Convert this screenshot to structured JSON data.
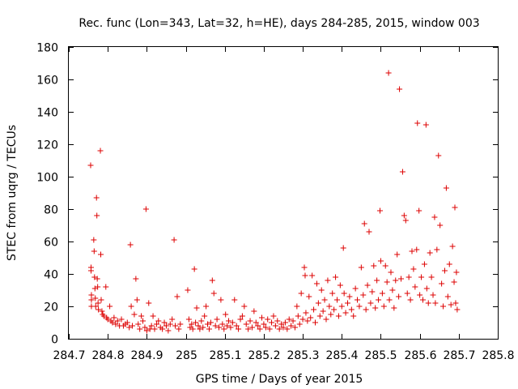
{
  "chart_data": {
    "type": "scatter",
    "title": "Rec. func (Lon=343, Lat=32, h=HE), days 284-285, 2015, window 003",
    "xlabel": "GPS time / Days of year 2015",
    "ylabel": "STEC from uqrg / TECUs",
    "xlim": [
      284.7,
      285.8
    ],
    "ylim": [
      0,
      180
    ],
    "xticks": [
      284.7,
      284.8,
      284.9,
      285,
      285.1,
      285.2,
      285.3,
      285.4,
      285.5,
      285.6,
      285.7,
      285.8
    ],
    "xtick_labels": [
      "284.7",
      "284.8",
      "284.9",
      "285",
      "285.1",
      "285.2",
      "285.3",
      "285.4",
      "285.5",
      "285.6",
      "285.7",
      "285.8"
    ],
    "yticks": [
      0,
      20,
      40,
      60,
      80,
      100,
      120,
      140,
      160,
      180
    ],
    "ytick_labels": [
      "0",
      "20",
      "40",
      "60",
      "80",
      "100",
      "120",
      "140",
      "160",
      "180"
    ],
    "grid": false,
    "marker": "+",
    "color": "#dd0000",
    "series": [
      {
        "name": "STEC",
        "points": [
          [
            284.756,
            107
          ],
          [
            284.757,
            44
          ],
          [
            284.757,
            42
          ],
          [
            284.758,
            27
          ],
          [
            284.758,
            24
          ],
          [
            284.758,
            20
          ],
          [
            284.764,
            61
          ],
          [
            284.765,
            54
          ],
          [
            284.766,
            38
          ],
          [
            284.767,
            31
          ],
          [
            284.768,
            25
          ],
          [
            284.769,
            20
          ],
          [
            284.771,
            87
          ],
          [
            284.772,
            76
          ],
          [
            284.773,
            37
          ],
          [
            284.774,
            32
          ],
          [
            284.775,
            22
          ],
          [
            284.776,
            18
          ],
          [
            284.781,
            116
          ],
          [
            284.782,
            52
          ],
          [
            284.783,
            24
          ],
          [
            284.785,
            17
          ],
          [
            284.787,
            15
          ],
          [
            284.79,
            14
          ],
          [
            284.795,
            32
          ],
          [
            284.797,
            13
          ],
          [
            284.8,
            12
          ],
          [
            284.805,
            20
          ],
          [
            284.808,
            11
          ],
          [
            284.812,
            10
          ],
          [
            284.816,
            13
          ],
          [
            284.82,
            9
          ],
          [
            284.825,
            11
          ],
          [
            284.83,
            8
          ],
          [
            284.835,
            12
          ],
          [
            284.84,
            8
          ],
          [
            284.845,
            9
          ],
          [
            284.85,
            10
          ],
          [
            284.855,
            7
          ],
          [
            284.858,
            58
          ],
          [
            284.86,
            20
          ],
          [
            284.863,
            8
          ],
          [
            284.868,
            15
          ],
          [
            284.872,
            37
          ],
          [
            284.875,
            24
          ],
          [
            284.878,
            9
          ],
          [
            284.882,
            6
          ],
          [
            284.886,
            14
          ],
          [
            284.89,
            11
          ],
          [
            284.895,
            7
          ],
          [
            284.898,
            80
          ],
          [
            284.9,
            5
          ],
          [
            284.905,
            22
          ],
          [
            284.908,
            6
          ],
          [
            284.912,
            8
          ],
          [
            284.916,
            14
          ],
          [
            284.92,
            6
          ],
          [
            284.925,
            9
          ],
          [
            284.93,
            11
          ],
          [
            284.935,
            7
          ],
          [
            284.94,
            6
          ],
          [
            284.945,
            10
          ],
          [
            284.95,
            8
          ],
          [
            284.955,
            5
          ],
          [
            284.96,
            9
          ],
          [
            284.965,
            12
          ],
          [
            284.97,
            61
          ],
          [
            284.973,
            8
          ],
          [
            284.978,
            26
          ],
          [
            284.982,
            6
          ],
          [
            284.986,
            9
          ],
          [
            285.005,
            30
          ],
          [
            285.008,
            12
          ],
          [
            285.011,
            7
          ],
          [
            285.015,
            9
          ],
          [
            285.018,
            6
          ],
          [
            285.022,
            43
          ],
          [
            285.025,
            10
          ],
          [
            285.028,
            19
          ],
          [
            285.032,
            8
          ],
          [
            285.036,
            6
          ],
          [
            285.04,
            11
          ],
          [
            285.044,
            7
          ],
          [
            285.048,
            14
          ],
          [
            285.052,
            20
          ],
          [
            285.056,
            9
          ],
          [
            285.06,
            6
          ],
          [
            285.064,
            10
          ],
          [
            285.068,
            36
          ],
          [
            285.072,
            28
          ],
          [
            285.076,
            8
          ],
          [
            285.08,
            12
          ],
          [
            285.085,
            7
          ],
          [
            285.09,
            24
          ],
          [
            285.094,
            9
          ],
          [
            285.098,
            6
          ],
          [
            285.102,
            15
          ],
          [
            285.106,
            8
          ],
          [
            285.11,
            11
          ],
          [
            285.115,
            7
          ],
          [
            285.12,
            10
          ],
          [
            285.125,
            24
          ],
          [
            285.13,
            8
          ],
          [
            285.135,
            6
          ],
          [
            285.14,
            12
          ],
          [
            285.145,
            14
          ],
          [
            285.15,
            20
          ],
          [
            285.155,
            9
          ],
          [
            285.16,
            6
          ],
          [
            285.165,
            11
          ],
          [
            285.17,
            7
          ],
          [
            285.175,
            17
          ],
          [
            285.18,
            10
          ],
          [
            285.185,
            8
          ],
          [
            285.19,
            6
          ],
          [
            285.195,
            13
          ],
          [
            285.2,
            9
          ],
          [
            285.205,
            7
          ],
          [
            285.21,
            12
          ],
          [
            285.215,
            6
          ],
          [
            285.22,
            10
          ],
          [
            285.225,
            14
          ],
          [
            285.23,
            8
          ],
          [
            285.235,
            11
          ],
          [
            285.24,
            6
          ],
          [
            285.245,
            9
          ],
          [
            285.25,
            7
          ],
          [
            285.255,
            10
          ],
          [
            285.26,
            6
          ],
          [
            285.265,
            12
          ],
          [
            285.27,
            8
          ],
          [
            285.275,
            11
          ],
          [
            285.28,
            7
          ],
          [
            285.285,
            20
          ],
          [
            285.288,
            14
          ],
          [
            285.292,
            9
          ],
          [
            285.296,
            28
          ],
          [
            285.3,
            12
          ],
          [
            285.304,
            44
          ],
          [
            285.306,
            39
          ],
          [
            285.308,
            16
          ],
          [
            285.312,
            11
          ],
          [
            285.316,
            26
          ],
          [
            285.32,
            13
          ],
          [
            285.324,
            39
          ],
          [
            285.328,
            18
          ],
          [
            285.332,
            10
          ],
          [
            285.336,
            34
          ],
          [
            285.34,
            22
          ],
          [
            285.344,
            14
          ],
          [
            285.348,
            30
          ],
          [
            285.352,
            17
          ],
          [
            285.356,
            24
          ],
          [
            285.36,
            12
          ],
          [
            285.364,
            36
          ],
          [
            285.368,
            20
          ],
          [
            285.372,
            15
          ],
          [
            285.376,
            28
          ],
          [
            285.38,
            18
          ],
          [
            285.384,
            38
          ],
          [
            285.388,
            24
          ],
          [
            285.392,
            14
          ],
          [
            285.396,
            33
          ],
          [
            285.4,
            20
          ],
          [
            285.404,
            56
          ],
          [
            285.406,
            28
          ],
          [
            285.41,
            16
          ],
          [
            285.415,
            22
          ],
          [
            285.42,
            26
          ],
          [
            285.425,
            18
          ],
          [
            285.43,
            14
          ],
          [
            285.435,
            31
          ],
          [
            285.44,
            24
          ],
          [
            285.445,
            20
          ],
          [
            285.45,
            44
          ],
          [
            285.455,
            27
          ],
          [
            285.458,
            71
          ],
          [
            285.462,
            18
          ],
          [
            285.466,
            33
          ],
          [
            285.47,
            66
          ],
          [
            285.474,
            22
          ],
          [
            285.478,
            29
          ],
          [
            285.482,
            45
          ],
          [
            285.486,
            19
          ],
          [
            285.49,
            36
          ],
          [
            285.494,
            24
          ],
          [
            285.498,
            79
          ],
          [
            285.5,
            48
          ],
          [
            285.504,
            28
          ],
          [
            285.508,
            20
          ],
          [
            285.512,
            45
          ],
          [
            285.516,
            35
          ],
          [
            285.52,
            164
          ],
          [
            285.522,
            24
          ],
          [
            285.526,
            41
          ],
          [
            285.53,
            30
          ],
          [
            285.534,
            19
          ],
          [
            285.538,
            36
          ],
          [
            285.542,
            52
          ],
          [
            285.546,
            26
          ],
          [
            285.548,
            154
          ],
          [
            285.552,
            37
          ],
          [
            285.556,
            103
          ],
          [
            285.56,
            76
          ],
          [
            285.564,
            73
          ],
          [
            285.568,
            28
          ],
          [
            285.572,
            38
          ],
          [
            285.576,
            24
          ],
          [
            285.58,
            54
          ],
          [
            285.584,
            43
          ],
          [
            285.588,
            32
          ],
          [
            285.592,
            55
          ],
          [
            285.594,
            133
          ],
          [
            285.598,
            79
          ],
          [
            285.6,
            27
          ],
          [
            285.604,
            38
          ],
          [
            285.608,
            24
          ],
          [
            285.612,
            46
          ],
          [
            285.616,
            132
          ],
          [
            285.618,
            31
          ],
          [
            285.622,
            22
          ],
          [
            285.626,
            53
          ],
          [
            285.63,
            38
          ],
          [
            285.634,
            27
          ],
          [
            285.638,
            75
          ],
          [
            285.64,
            22
          ],
          [
            285.644,
            55
          ],
          [
            285.648,
            113
          ],
          [
            285.652,
            70
          ],
          [
            285.656,
            34
          ],
          [
            285.66,
            20
          ],
          [
            285.664,
            42
          ],
          [
            285.668,
            93
          ],
          [
            285.672,
            26
          ],
          [
            285.676,
            46
          ],
          [
            285.68,
            21
          ],
          [
            285.684,
            57
          ],
          [
            285.688,
            35
          ],
          [
            285.69,
            81
          ],
          [
            285.692,
            22
          ],
          [
            285.694,
            41
          ],
          [
            285.696,
            18
          ]
        ]
      }
    ]
  }
}
